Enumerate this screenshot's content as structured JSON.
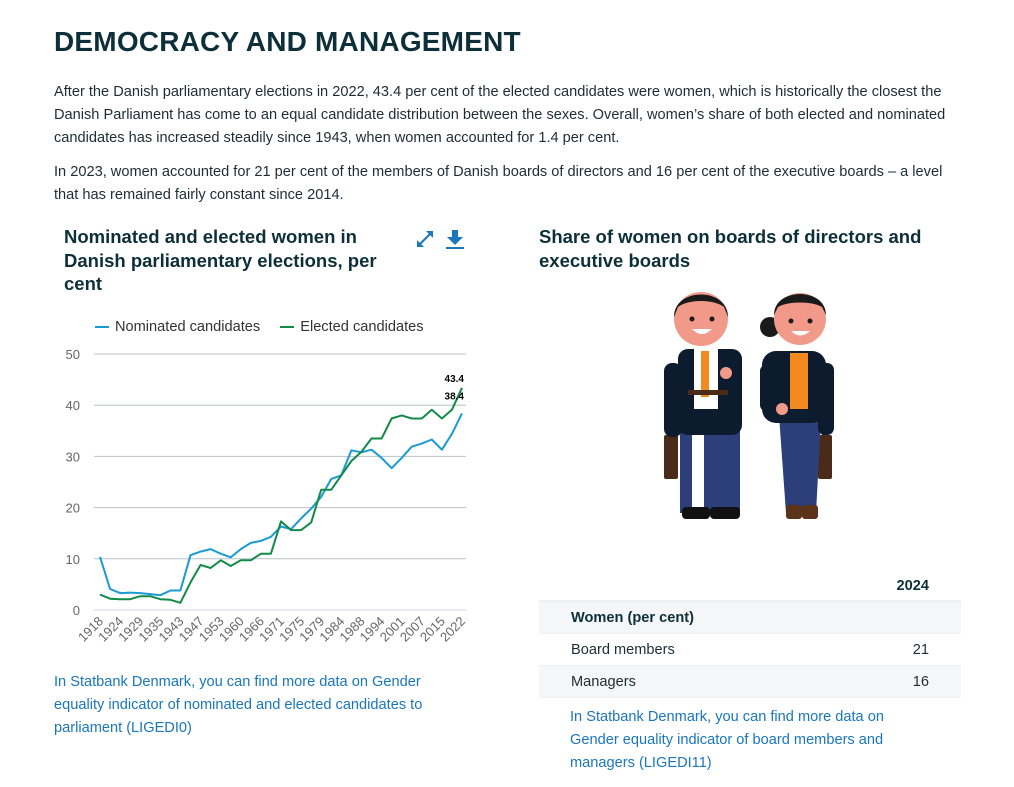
{
  "page": {
    "title": "DEMOCRACY AND MANAGEMENT",
    "paragraphs": [
      "After the Danish parliamentary elections in 2022, 43.4 per cent of the elected candidates were women, which is historically the closest the Danish Parliament has come to an equal candidate distribution between the sexes. Overall, women’s share of both elected and nominated candidates has increased steadily since 1943, when women accounted for 1.4 per cent.",
      "In 2023, women accounted for 21 per cent of the members of Danish boards of directors and 16 per cent of the executive boards – a level that has remained fairly constant since 2014."
    ]
  },
  "left_panel": {
    "icons": {
      "expand": "expand-icon",
      "download": "download-icon"
    },
    "link_text": "In Statbank Denmark, you can find more data on Gender equality indicator of nominated and elected candidates to parliament (LIGEDI0)"
  },
  "right_panel": {
    "title": "Share of women on boards of directors and executive boards",
    "table": {
      "column_header": "2024",
      "group_label": "Women (per cent)",
      "rows": [
        {
          "label": "Board members",
          "value": "21"
        },
        {
          "label": "Managers",
          "value": "16"
        }
      ]
    },
    "link_text": "In Statbank Denmark, you can find more data on Gender equality indicator of board members and managers (LIGEDI11)"
  },
  "colors": {
    "nominated": "#1a9ad6",
    "elected": "#138a47",
    "link": "#1a76bd",
    "title": "#0d2f3a",
    "grid": "#b8c2c8"
  },
  "chart_data": {
    "type": "line",
    "title": "Nominated and elected women in Danish parliamentary elections, per cent",
    "xlabel": "",
    "ylabel": "",
    "ylim": [
      0,
      50
    ],
    "yticks": [
      "0",
      "10",
      "20",
      "30",
      "40",
      "50"
    ],
    "grid": true,
    "legend_position": "top",
    "x": [
      "1918",
      "1920",
      "1924",
      "1926",
      "1929",
      "1932",
      "1935",
      "1939",
      "1943",
      "1945",
      "1947",
      "1950",
      "1953",
      "1957",
      "1960",
      "1964",
      "1966",
      "1968",
      "1971",
      "1973",
      "1975",
      "1977",
      "1979",
      "1981",
      "1984",
      "1987",
      "1988",
      "1990",
      "1994",
      "1998",
      "2001",
      "2005",
      "2007",
      "2011",
      "2015",
      "2019",
      "2022"
    ],
    "xtick_labels": [
      "1918",
      "1924",
      "1929",
      "1935",
      "1943",
      "1947",
      "1953",
      "1960",
      "1966",
      "1971",
      "1975",
      "1979",
      "1984",
      "1988",
      "1994",
      "2001",
      "2007",
      "2015",
      "2022"
    ],
    "series": [
      {
        "name": "Nominated candidates",
        "values": [
          10.4,
          4.1,
          3.3,
          3.4,
          3.3,
          3.1,
          2.9,
          3.8,
          3.8,
          10.7,
          11.4,
          11.9,
          11.0,
          10.3,
          11.9,
          13.1,
          13.5,
          14.3,
          16.3,
          15.8,
          17.9,
          19.8,
          22.1,
          25.6,
          26.3,
          31.2,
          30.8,
          31.3,
          29.7,
          27.7,
          29.7,
          31.9,
          32.5,
          33.3,
          31.3,
          34.4,
          38.4
        ],
        "end_label": "38.4"
      },
      {
        "name": "Elected candidates",
        "values": [
          3.0,
          2.2,
          2.1,
          2.1,
          2.7,
          2.7,
          2.1,
          2.0,
          1.4,
          5.4,
          8.8,
          8.2,
          9.7,
          8.6,
          9.7,
          9.7,
          11.0,
          11.0,
          17.3,
          15.6,
          15.6,
          17.1,
          23.5,
          23.5,
          26.3,
          29.1,
          30.9,
          33.5,
          33.5,
          37.4,
          38.0,
          37.4,
          37.4,
          39.1,
          37.4,
          39.1,
          43.4
        ],
        "end_label": "43.4"
      }
    ]
  }
}
